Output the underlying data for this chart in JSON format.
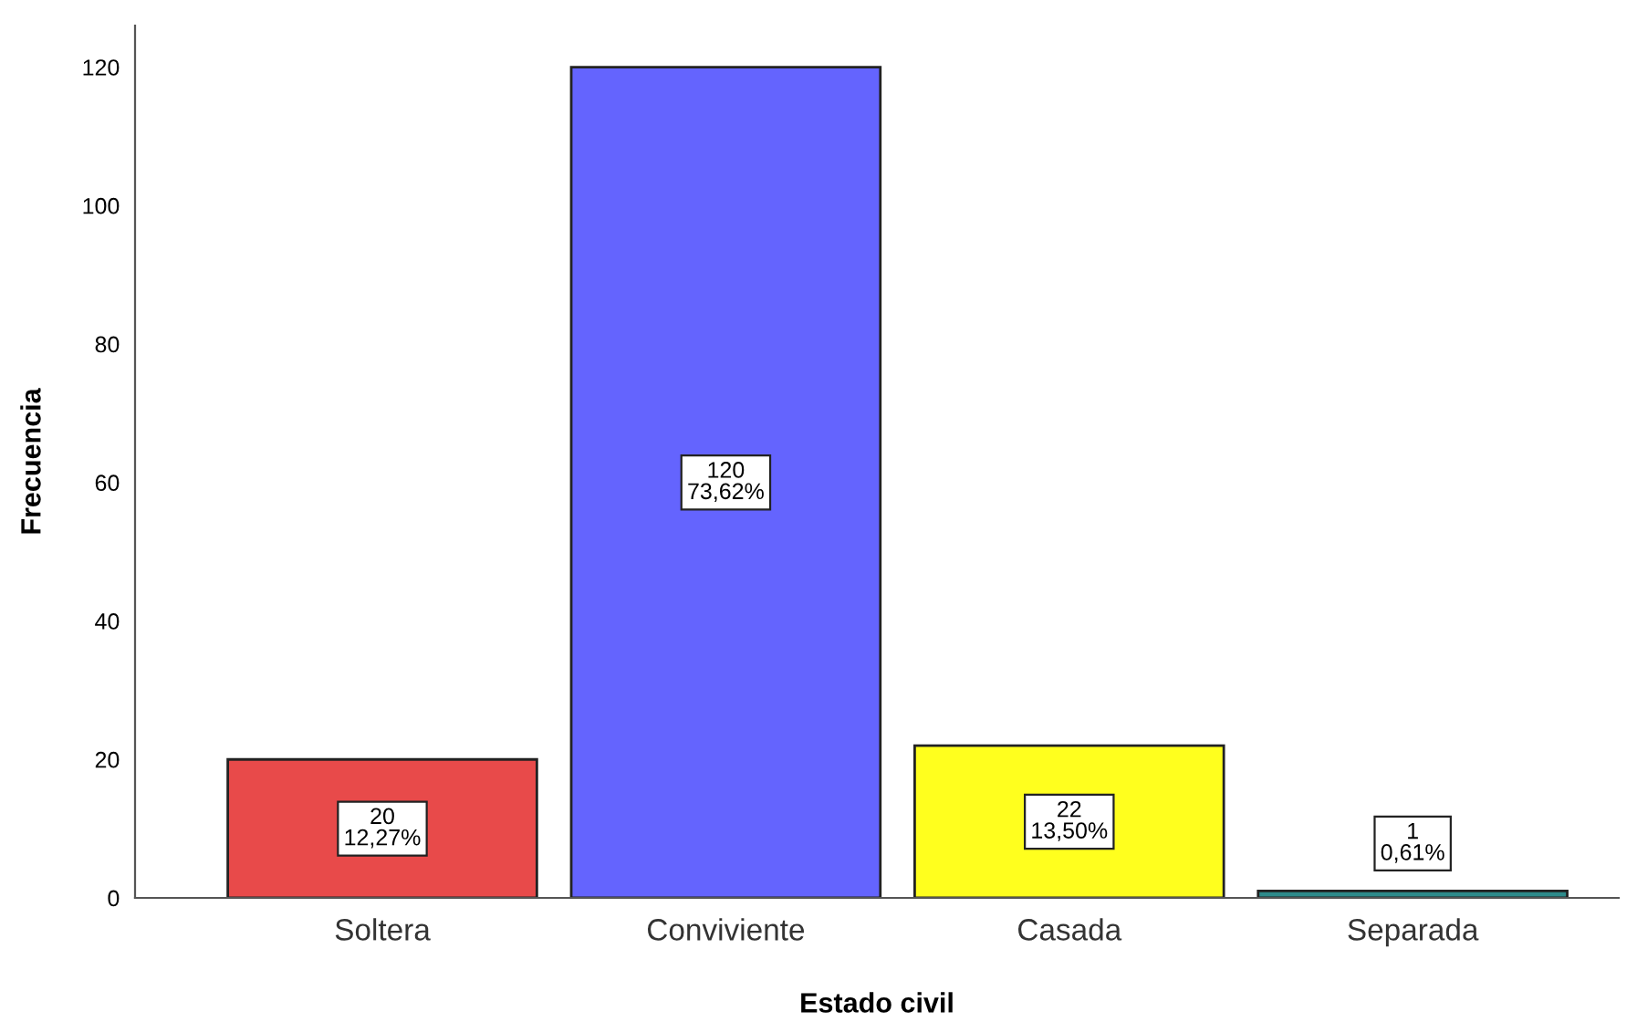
{
  "chart_data": {
    "type": "bar",
    "xlabel": "Estado civil",
    "ylabel": "Frecuencia",
    "categories": [
      "Soltera",
      "Conviviente",
      "Casada",
      "Separada"
    ],
    "values": [
      20,
      120,
      22,
      1
    ],
    "colors": [
      "#e84a4a",
      "#6464fe",
      "#ffff1e",
      "#2e8b8b"
    ],
    "value_labels": [
      "20\n12,27%",
      "120\n73,62%",
      "22\n13,50%",
      "1\n0,61%"
    ],
    "ylim": [
      0,
      126
    ],
    "yticks": [
      0,
      20,
      40,
      60,
      80,
      100,
      120
    ],
    "grid": false,
    "legend": false
  }
}
